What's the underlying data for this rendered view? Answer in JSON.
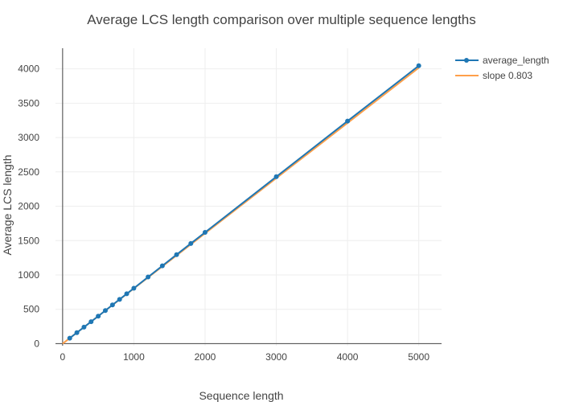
{
  "chart_data": {
    "type": "line",
    "title": "Average LCS length comparison over multiple sequence lengths",
    "xlabel": "Sequence length",
    "ylabel": "Average LCS length",
    "xlim": [
      -100,
      5320
    ],
    "ylim": [
      -30,
      4300
    ],
    "x_ticks": [
      0,
      1000,
      2000,
      3000,
      4000,
      5000
    ],
    "y_ticks": [
      0,
      500,
      1000,
      1500,
      2000,
      2500,
      3000,
      3500,
      4000
    ],
    "grid": true,
    "legend_position": "top-right",
    "series": [
      {
        "name": "average_length",
        "mode": "lines+markers",
        "color": "#1f77b4",
        "x": [
          100,
          200,
          300,
          400,
          500,
          600,
          700,
          800,
          900,
          1000,
          1200,
          1400,
          1600,
          1800,
          2000,
          3000,
          4000,
          5000
        ],
        "y": [
          80,
          160,
          240,
          320,
          400,
          482,
          564,
          645,
          726,
          807,
          970,
          1133,
          1296,
          1458,
          1620,
          2430,
          3240,
          4045
        ]
      },
      {
        "name": "slope 0.803",
        "mode": "lines",
        "color": "#ff9f4a",
        "x": [
          0,
          5000
        ],
        "y": [
          0,
          4015
        ]
      }
    ]
  }
}
